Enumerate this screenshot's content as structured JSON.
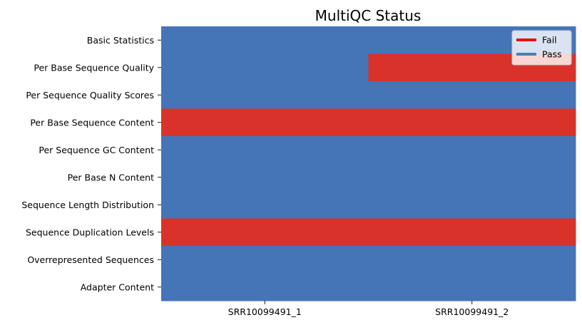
{
  "chart_data": {
    "type": "heatmap",
    "title": "MultiQC Status",
    "xlabel": "",
    "ylabel": "",
    "columns": [
      "SRR10099491_1",
      "SRR10099491_2"
    ],
    "rows": [
      "Basic Statistics",
      "Per Base Sequence Quality",
      "Per Sequence Quality Scores",
      "Per Base Sequence Content",
      "Per Sequence GC Content",
      "Per Base N Content",
      "Sequence Length Distribution",
      "Sequence Duplication Levels",
      "Overrepresented Sequences",
      "Adapter Content"
    ],
    "values": [
      [
        "Pass",
        "Pass"
      ],
      [
        "Pass",
        "Fail"
      ],
      [
        "Pass",
        "Pass"
      ],
      [
        "Fail",
        "Fail"
      ],
      [
        "Pass",
        "Pass"
      ],
      [
        "Pass",
        "Pass"
      ],
      [
        "Pass",
        "Pass"
      ],
      [
        "Fail",
        "Fail"
      ],
      [
        "Pass",
        "Pass"
      ],
      [
        "Pass",
        "Pass"
      ]
    ],
    "cell_colors": {
      "Pass": "#4575b7",
      "Fail": "#d9322a"
    },
    "legend": {
      "placement": "top-right",
      "entries": [
        {
          "label": "Fail",
          "color": "#e8100f"
        },
        {
          "label": "Pass",
          "color": "#4682b4"
        }
      ]
    }
  }
}
